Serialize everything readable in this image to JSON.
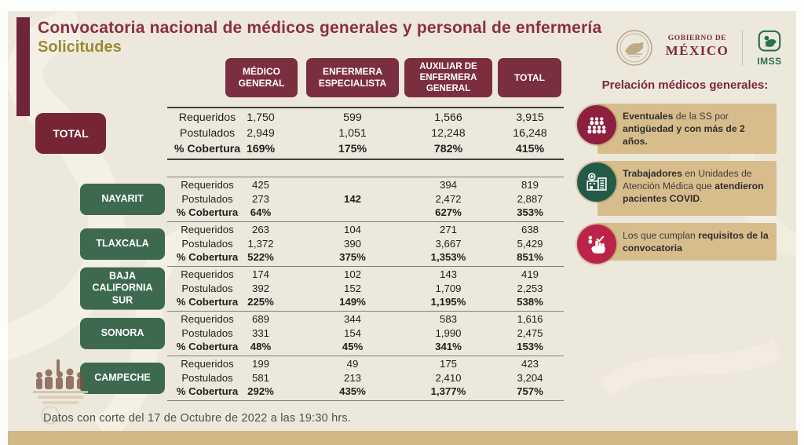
{
  "title": {
    "line1": "Convocatoria nacional de médicos generales y personal de enfermería",
    "line2": "Solicitudes"
  },
  "logos": {
    "gobierno_line1": "GOBIERNO DE",
    "gobierno_line2": "MÉXICO",
    "imss": "IMSS"
  },
  "table": {
    "column_headers": [
      "MÉDICO GENERAL",
      "ENFERMERA ESPECIALISTA",
      "AUXILIAR DE ENFERMERA GENERAL",
      "TOTAL"
    ],
    "row_labels": [
      "Requeridos",
      "Postulados",
      "% Cobertura"
    ],
    "total": {
      "label": "TOTAL",
      "requeridos": [
        "1,750",
        "599",
        "1,566",
        "3,915"
      ],
      "postulados": [
        "2,949",
        "1,051",
        "12,248",
        "16,248"
      ],
      "cobertura": [
        "169%",
        "175%",
        "782%",
        "415%"
      ]
    },
    "states": [
      {
        "label": "NAYARIT",
        "requeridos": [
          "425",
          "",
          "394",
          "819"
        ],
        "postulados": [
          "273",
          "142",
          "2,472",
          "2,887"
        ],
        "cobertura": [
          "64%",
          "",
          "627%",
          "353%"
        ],
        "bold": {
          "postulados": [
            1
          ]
        }
      },
      {
        "label": "TLAXCALA",
        "requeridos": [
          "263",
          "104",
          "271",
          "638"
        ],
        "postulados": [
          "1,372",
          "390",
          "3,667",
          "5,429"
        ],
        "cobertura": [
          "522%",
          "375%",
          "1,353%",
          "851%"
        ]
      },
      {
        "label": "BAJA CALIFORNIA SUR",
        "requeridos": [
          "174",
          "102",
          "143",
          "419"
        ],
        "postulados": [
          "392",
          "152",
          "1,709",
          "2,253"
        ],
        "cobertura": [
          "225%",
          "149%",
          "1,195%",
          "538%"
        ]
      },
      {
        "label": "SONORA",
        "requeridos": [
          "689",
          "344",
          "583",
          "1,616"
        ],
        "postulados": [
          "331",
          "154",
          "1,990",
          "2,475"
        ],
        "cobertura": [
          "48%",
          "45%",
          "341%",
          "153%"
        ]
      },
      {
        "label": "CAMPECHE",
        "requeridos": [
          "199",
          "49",
          "175",
          "423"
        ],
        "postulados": [
          "581",
          "213",
          "2,410",
          "3,204"
        ],
        "cobertura": [
          "292%",
          "435%",
          "1,377%",
          "757%"
        ]
      }
    ]
  },
  "sidebar": {
    "heading": "Prelación médicos generales:",
    "items": [
      {
        "icon": "people-group-icon",
        "circle_color": "#8e1f3f",
        "segments": [
          {
            "t": "Eventuales",
            "b": true
          },
          {
            "t": " de la SS por ",
            "b": false
          },
          {
            "t": "antigüedad y con  más de 2 años.",
            "b": true
          }
        ]
      },
      {
        "icon": "medical-unit-icon",
        "circle_color": "#235b47",
        "segments": [
          {
            "t": "Trabajadores",
            "b": true
          },
          {
            "t": " en Unidades de Atención Médica que ",
            "b": false
          },
          {
            "t": "atendieron pacientes COVID",
            "b": true
          },
          {
            "t": ".",
            "b": false
          }
        ]
      },
      {
        "icon": "hand-requirements-icon",
        "circle_color": "#bb2349",
        "segments": [
          {
            "t": "Los que cumplan ",
            "b": false
          },
          {
            "t": "requisitos de la convocatoria",
            "b": true
          }
        ]
      }
    ]
  },
  "footer": {
    "text": "Datos con corte del 17 de Octubre de 2022 a las 19:30 hrs."
  },
  "colors": {
    "maroon": "#7b2e3e",
    "maroon_dark": "#6d2639",
    "burgundy_title": "#8c2f3f",
    "olive": "#9c8b33",
    "green": "#3d6a4e",
    "tan_box": "#d8bd8c",
    "gold_bar": "#d2b787",
    "slide_bg": "#ede8dc",
    "crimson": "#bb2349",
    "imss_green": "#2a6e4e"
  }
}
